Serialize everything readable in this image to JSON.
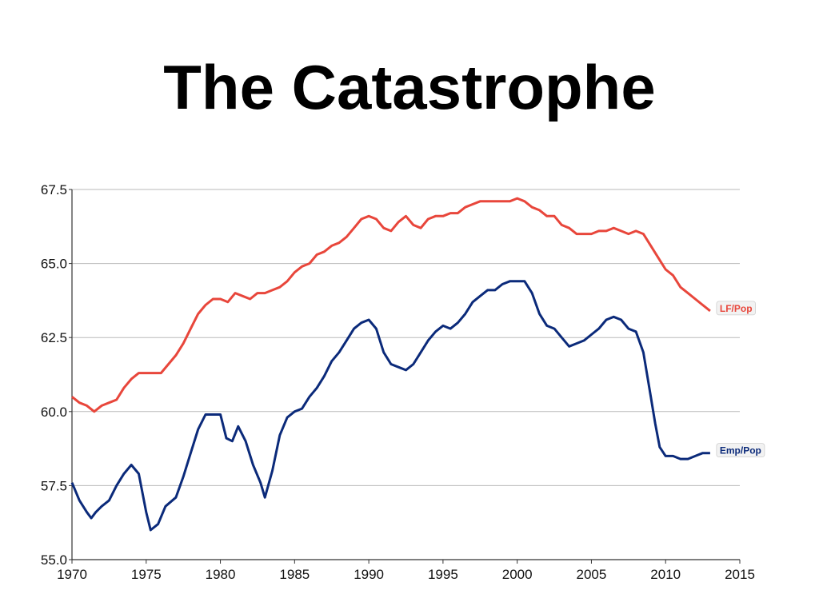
{
  "slide": {
    "title": "The Catastrophe"
  },
  "chart_data": {
    "type": "line",
    "title": "",
    "xlabel": "",
    "ylabel": "",
    "xlim": [
      1970,
      2015
    ],
    "ylim": [
      55.0,
      67.5
    ],
    "x_ticks": [
      "1970",
      "1975",
      "1980",
      "1985",
      "1990",
      "1995",
      "2000",
      "2005",
      "2010",
      "2015"
    ],
    "y_ticks": [
      "55.0",
      "57.5",
      "60.0",
      "62.5",
      "65.0",
      "67.5"
    ],
    "grid": "horizontal",
    "legend": "inline labels at line ends",
    "series": [
      {
        "name": "LF/Pop",
        "color": "#e8463b",
        "points": [
          [
            1970.0,
            60.5
          ],
          [
            1970.5,
            60.3
          ],
          [
            1971.0,
            60.2
          ],
          [
            1971.5,
            60.0
          ],
          [
            1972.0,
            60.2
          ],
          [
            1972.5,
            60.3
          ],
          [
            1973.0,
            60.4
          ],
          [
            1973.5,
            60.8
          ],
          [
            1974.0,
            61.1
          ],
          [
            1974.5,
            61.3
          ],
          [
            1975.0,
            61.3
          ],
          [
            1975.5,
            61.3
          ],
          [
            1976.0,
            61.3
          ],
          [
            1976.5,
            61.6
          ],
          [
            1977.0,
            61.9
          ],
          [
            1977.5,
            62.3
          ],
          [
            1978.0,
            62.8
          ],
          [
            1978.5,
            63.3
          ],
          [
            1979.0,
            63.6
          ],
          [
            1979.5,
            63.8
          ],
          [
            1980.0,
            63.8
          ],
          [
            1980.5,
            63.7
          ],
          [
            1981.0,
            64.0
          ],
          [
            1981.5,
            63.9
          ],
          [
            1982.0,
            63.8
          ],
          [
            1982.5,
            64.0
          ],
          [
            1983.0,
            64.0
          ],
          [
            1983.5,
            64.1
          ],
          [
            1984.0,
            64.2
          ],
          [
            1984.5,
            64.4
          ],
          [
            1985.0,
            64.7
          ],
          [
            1985.5,
            64.9
          ],
          [
            1986.0,
            65.0
          ],
          [
            1986.5,
            65.3
          ],
          [
            1987.0,
            65.4
          ],
          [
            1987.5,
            65.6
          ],
          [
            1988.0,
            65.7
          ],
          [
            1988.5,
            65.9
          ],
          [
            1989.0,
            66.2
          ],
          [
            1989.5,
            66.5
          ],
          [
            1990.0,
            66.6
          ],
          [
            1990.5,
            66.5
          ],
          [
            1991.0,
            66.2
          ],
          [
            1991.5,
            66.1
          ],
          [
            1992.0,
            66.4
          ],
          [
            1992.5,
            66.6
          ],
          [
            1993.0,
            66.3
          ],
          [
            1993.5,
            66.2
          ],
          [
            1994.0,
            66.5
          ],
          [
            1994.5,
            66.6
          ],
          [
            1995.0,
            66.6
          ],
          [
            1995.5,
            66.7
          ],
          [
            1996.0,
            66.7
          ],
          [
            1996.5,
            66.9
          ],
          [
            1997.0,
            67.0
          ],
          [
            1997.5,
            67.1
          ],
          [
            1998.0,
            67.1
          ],
          [
            1998.5,
            67.1
          ],
          [
            1999.0,
            67.1
          ],
          [
            1999.5,
            67.1
          ],
          [
            2000.0,
            67.2
          ],
          [
            2000.5,
            67.1
          ],
          [
            2001.0,
            66.9
          ],
          [
            2001.5,
            66.8
          ],
          [
            2002.0,
            66.6
          ],
          [
            2002.5,
            66.6
          ],
          [
            2003.0,
            66.3
          ],
          [
            2003.5,
            66.2
          ],
          [
            2004.0,
            66.0
          ],
          [
            2004.5,
            66.0
          ],
          [
            2005.0,
            66.0
          ],
          [
            2005.5,
            66.1
          ],
          [
            2006.0,
            66.1
          ],
          [
            2006.5,
            66.2
          ],
          [
            2007.0,
            66.1
          ],
          [
            2007.5,
            66.0
          ],
          [
            2008.0,
            66.1
          ],
          [
            2008.5,
            66.0
          ],
          [
            2009.0,
            65.6
          ],
          [
            2009.5,
            65.2
          ],
          [
            2010.0,
            64.8
          ],
          [
            2010.5,
            64.6
          ],
          [
            2011.0,
            64.2
          ],
          [
            2011.5,
            64.0
          ],
          [
            2012.0,
            63.8
          ],
          [
            2012.5,
            63.6
          ],
          [
            2013.0,
            63.4
          ]
        ]
      },
      {
        "name": "Emp/Pop",
        "color": "#0b2a7a",
        "points": [
          [
            1970.0,
            57.6
          ],
          [
            1970.5,
            57.0
          ],
          [
            1971.0,
            56.6
          ],
          [
            1971.3,
            56.4
          ],
          [
            1971.6,
            56.6
          ],
          [
            1972.0,
            56.8
          ],
          [
            1972.5,
            57.0
          ],
          [
            1973.0,
            57.5
          ],
          [
            1973.5,
            57.9
          ],
          [
            1974.0,
            58.2
          ],
          [
            1974.5,
            57.9
          ],
          [
            1975.0,
            56.6
          ],
          [
            1975.3,
            56.0
          ],
          [
            1975.8,
            56.2
          ],
          [
            1976.3,
            56.8
          ],
          [
            1977.0,
            57.1
          ],
          [
            1977.5,
            57.8
          ],
          [
            1978.0,
            58.6
          ],
          [
            1978.5,
            59.4
          ],
          [
            1979.0,
            59.9
          ],
          [
            1979.5,
            59.9
          ],
          [
            1980.0,
            59.9
          ],
          [
            1980.4,
            59.1
          ],
          [
            1980.8,
            59.0
          ],
          [
            1981.2,
            59.5
          ],
          [
            1981.7,
            59.0
          ],
          [
            1982.2,
            58.2
          ],
          [
            1982.7,
            57.6
          ],
          [
            1983.0,
            57.1
          ],
          [
            1983.5,
            58.0
          ],
          [
            1984.0,
            59.2
          ],
          [
            1984.5,
            59.8
          ],
          [
            1985.0,
            60.0
          ],
          [
            1985.5,
            60.1
          ],
          [
            1986.0,
            60.5
          ],
          [
            1986.5,
            60.8
          ],
          [
            1987.0,
            61.2
          ],
          [
            1987.5,
            61.7
          ],
          [
            1988.0,
            62.0
          ],
          [
            1988.5,
            62.4
          ],
          [
            1989.0,
            62.8
          ],
          [
            1989.5,
            63.0
          ],
          [
            1990.0,
            63.1
          ],
          [
            1990.5,
            62.8
          ],
          [
            1991.0,
            62.0
          ],
          [
            1991.5,
            61.6
          ],
          [
            1992.0,
            61.5
          ],
          [
            1992.5,
            61.4
          ],
          [
            1993.0,
            61.6
          ],
          [
            1993.5,
            62.0
          ],
          [
            1994.0,
            62.4
          ],
          [
            1994.5,
            62.7
          ],
          [
            1995.0,
            62.9
          ],
          [
            1995.5,
            62.8
          ],
          [
            1996.0,
            63.0
          ],
          [
            1996.5,
            63.3
          ],
          [
            1997.0,
            63.7
          ],
          [
            1997.5,
            63.9
          ],
          [
            1998.0,
            64.1
          ],
          [
            1998.5,
            64.1
          ],
          [
            1999.0,
            64.3
          ],
          [
            1999.5,
            64.4
          ],
          [
            2000.0,
            64.4
          ],
          [
            2000.5,
            64.4
          ],
          [
            2001.0,
            64.0
          ],
          [
            2001.5,
            63.3
          ],
          [
            2002.0,
            62.9
          ],
          [
            2002.5,
            62.8
          ],
          [
            2003.0,
            62.5
          ],
          [
            2003.5,
            62.2
          ],
          [
            2004.0,
            62.3
          ],
          [
            2004.5,
            62.4
          ],
          [
            2005.0,
            62.6
          ],
          [
            2005.5,
            62.8
          ],
          [
            2006.0,
            63.1
          ],
          [
            2006.5,
            63.2
          ],
          [
            2007.0,
            63.1
          ],
          [
            2007.5,
            62.8
          ],
          [
            2008.0,
            62.7
          ],
          [
            2008.5,
            62.0
          ],
          [
            2009.0,
            60.5
          ],
          [
            2009.3,
            59.6
          ],
          [
            2009.6,
            58.8
          ],
          [
            2010.0,
            58.5
          ],
          [
            2010.5,
            58.5
          ],
          [
            2011.0,
            58.4
          ],
          [
            2011.5,
            58.4
          ],
          [
            2012.0,
            58.5
          ],
          [
            2012.5,
            58.6
          ],
          [
            2013.0,
            58.6
          ]
        ]
      }
    ]
  }
}
